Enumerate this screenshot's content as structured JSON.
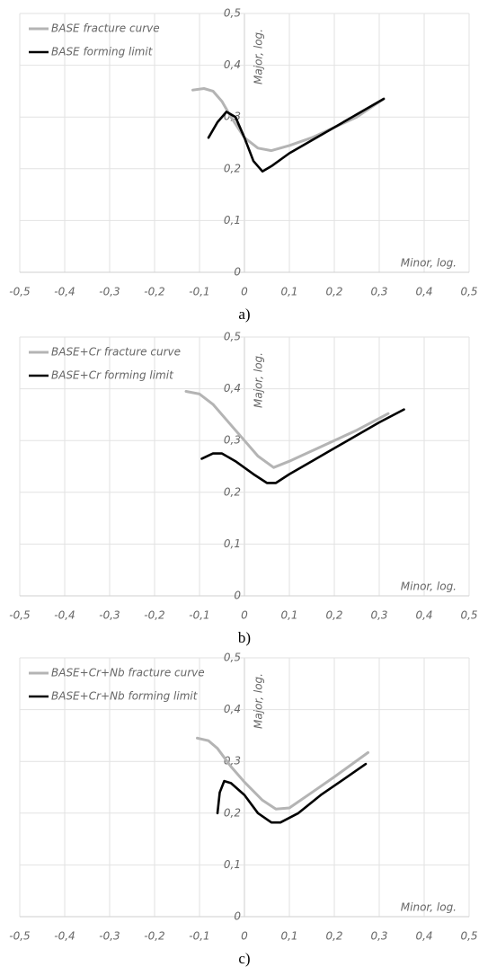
{
  "chart_data": [
    {
      "type": "line",
      "caption": "a)",
      "x_label": "Minor, log.",
      "y_label": "Major, log.",
      "grid": true,
      "legend": "top-left",
      "xlim": [
        -0.5,
        0.5
      ],
      "ylim": [
        0,
        0.5
      ],
      "xticks": [
        {
          "value": -0.5,
          "label": "-0,5"
        },
        {
          "value": -0.4,
          "label": "-0,4"
        },
        {
          "value": -0.3,
          "label": "-0,3"
        },
        {
          "value": -0.2,
          "label": "-0,2"
        },
        {
          "value": -0.1,
          "label": "-0,1"
        },
        0,
        {
          "value": 0.1,
          "label": "0,1"
        },
        {
          "value": 0.2,
          "label": "0,2"
        },
        {
          "value": 0.3,
          "label": "0,3"
        },
        {
          "value": 0.4,
          "label": "0,4"
        },
        {
          "value": 0.5,
          "label": "0,5"
        }
      ],
      "yticks": [
        0,
        {
          "value": 0.1,
          "label": "0,1"
        },
        {
          "value": 0.2,
          "label": "0,2"
        },
        {
          "value": 0.3,
          "label": "0,3"
        },
        {
          "value": 0.4,
          "label": "0,4"
        },
        {
          "value": 0.5,
          "label": "0,5"
        }
      ],
      "series": [
        {
          "name": "BASE fracture curve",
          "color": "#b4b4b4",
          "x": [
            -0.115,
            -0.09,
            -0.07,
            -0.05,
            -0.03,
            0,
            0.03,
            0.06,
            0.1,
            0.15,
            0.2,
            0.25,
            0.31
          ],
          "values": [
            0.352,
            0.355,
            0.35,
            0.33,
            0.3,
            0.26,
            0.24,
            0.235,
            0.245,
            0.26,
            0.28,
            0.3,
            0.335
          ]
        },
        {
          "name": "BASE forming limit",
          "color": "#000000",
          "x": [
            -0.08,
            -0.06,
            -0.04,
            -0.02,
            0,
            0.02,
            0.04,
            0.06,
            0.1,
            0.15,
            0.2,
            0.25,
            0.31
          ],
          "values": [
            0.26,
            0.29,
            0.31,
            0.3,
            0.26,
            0.215,
            0.195,
            0.205,
            0.23,
            0.255,
            0.28,
            0.305,
            0.335
          ]
        }
      ]
    },
    {
      "type": "line",
      "caption": "b)",
      "x_label": "Minor, log.",
      "y_label": "Major, log.",
      "grid": true,
      "legend": "top-left",
      "xlim": [
        -0.5,
        0.5
      ],
      "ylim": [
        0,
        0.5
      ],
      "xticks": [
        {
          "value": -0.5,
          "label": "-0,5"
        },
        {
          "value": -0.4,
          "label": "-0,4"
        },
        {
          "value": -0.3,
          "label": "-0,3"
        },
        {
          "value": -0.2,
          "label": "-0,2"
        },
        {
          "value": -0.1,
          "label": "-0,1"
        },
        0,
        {
          "value": 0.1,
          "label": "0,1"
        },
        {
          "value": 0.2,
          "label": "0,2"
        },
        {
          "value": 0.3,
          "label": "0,3"
        },
        {
          "value": 0.4,
          "label": "0,4"
        },
        {
          "value": 0.5,
          "label": "0,5"
        }
      ],
      "yticks": [
        0,
        {
          "value": 0.1,
          "label": "0,1"
        },
        {
          "value": 0.2,
          "label": "0,2"
        },
        {
          "value": 0.3,
          "label": "0,3"
        },
        {
          "value": 0.4,
          "label": "0,4"
        },
        {
          "value": 0.5,
          "label": "0,5"
        }
      ],
      "series": [
        {
          "name": "BASE+Cr fracture curve",
          "color": "#b4b4b4",
          "x": [
            -0.13,
            -0.1,
            -0.07,
            -0.04,
            0,
            0.03,
            0.065,
            0.1,
            0.15,
            0.2,
            0.25,
            0.32
          ],
          "values": [
            0.395,
            0.39,
            0.37,
            0.34,
            0.3,
            0.27,
            0.248,
            0.26,
            0.28,
            0.3,
            0.32,
            0.352
          ]
        },
        {
          "name": "BASE+Cr forming limit",
          "color": "#000000",
          "x": [
            -0.095,
            -0.07,
            -0.05,
            -0.02,
            0.02,
            0.05,
            0.07,
            0.1,
            0.15,
            0.2,
            0.25,
            0.3,
            0.355
          ],
          "values": [
            0.265,
            0.275,
            0.275,
            0.26,
            0.235,
            0.218,
            0.218,
            0.235,
            0.26,
            0.285,
            0.31,
            0.335,
            0.36
          ]
        }
      ]
    },
    {
      "type": "line",
      "caption": "c)",
      "x_label": "Minor, log.",
      "y_label": "Major, log.",
      "grid": true,
      "legend": "top-left",
      "xlim": [
        -0.5,
        0.5
      ],
      "ylim": [
        0,
        0.5
      ],
      "xticks": [
        {
          "value": -0.5,
          "label": "-0,5"
        },
        {
          "value": -0.4,
          "label": "-0,4"
        },
        {
          "value": -0.3,
          "label": "-0,3"
        },
        {
          "value": -0.2,
          "label": "-0,2"
        },
        {
          "value": -0.1,
          "label": "-0,1"
        },
        0,
        {
          "value": 0.1,
          "label": "0,1"
        },
        {
          "value": 0.2,
          "label": "0,2"
        },
        {
          "value": 0.3,
          "label": "0,3"
        },
        {
          "value": 0.4,
          "label": "0,4"
        },
        {
          "value": 0.5,
          "label": "0,5"
        }
      ],
      "yticks": [
        0,
        {
          "value": 0.1,
          "label": "0,1"
        },
        {
          "value": 0.2,
          "label": "0,2"
        },
        {
          "value": 0.3,
          "label": "0,3"
        },
        {
          "value": 0.4,
          "label": "0,4"
        },
        {
          "value": 0.5,
          "label": "0,5"
        }
      ],
      "series": [
        {
          "name": "BASE+Cr+Nb fracture curve",
          "color": "#b4b4b4",
          "x": [
            -0.105,
            -0.08,
            -0.06,
            -0.03,
            0,
            0.04,
            0.07,
            0.1,
            0.15,
            0.2,
            0.275
          ],
          "values": [
            0.345,
            0.34,
            0.325,
            0.29,
            0.26,
            0.225,
            0.208,
            0.21,
            0.24,
            0.27,
            0.317
          ]
        },
        {
          "name": "BASE+Cr+Nb forming limit",
          "color": "#000000",
          "x": [
            -0.06,
            -0.055,
            -0.045,
            -0.03,
            0,
            0.03,
            0.06,
            0.08,
            0.12,
            0.17,
            0.22,
            0.27
          ],
          "values": [
            0.2,
            0.24,
            0.262,
            0.258,
            0.235,
            0.2,
            0.182,
            0.182,
            0.2,
            0.235,
            0.265,
            0.295
          ]
        }
      ]
    }
  ]
}
